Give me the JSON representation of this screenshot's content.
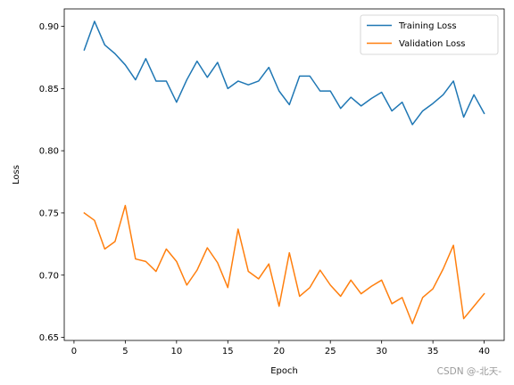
{
  "chart_data": {
    "type": "line",
    "title": "",
    "xlabel": "Epoch",
    "ylabel": "Loss",
    "xlim": [
      -0.95,
      41.95
    ],
    "ylim": [
      0.6475,
      0.914
    ],
    "x_ticks": [
      0,
      5,
      10,
      15,
      20,
      25,
      30,
      35,
      40
    ],
    "y_ticks": [
      0.65,
      0.7,
      0.75,
      0.8,
      0.85,
      0.9
    ],
    "grid": false,
    "legend_position": "top-right",
    "x": [
      1,
      2,
      3,
      4,
      5,
      6,
      7,
      8,
      9,
      10,
      11,
      12,
      13,
      14,
      15,
      16,
      17,
      18,
      19,
      20,
      21,
      22,
      23,
      24,
      25,
      26,
      27,
      28,
      29,
      30,
      31,
      32,
      33,
      34,
      35,
      36,
      37,
      38,
      39,
      40
    ],
    "series": [
      {
        "name": "Training Loss",
        "color": "#1f77b4",
        "values": [
          0.881,
          0.904,
          0.885,
          0.878,
          0.869,
          0.857,
          0.874,
          0.856,
          0.856,
          0.839,
          0.857,
          0.872,
          0.859,
          0.871,
          0.85,
          0.856,
          0.853,
          0.856,
          0.867,
          0.848,
          0.837,
          0.86,
          0.86,
          0.848,
          0.848,
          0.834,
          0.843,
          0.836,
          0.842,
          0.847,
          0.832,
          0.839,
          0.821,
          0.832,
          0.838,
          0.845,
          0.856,
          0.827,
          0.845,
          0.83
        ]
      },
      {
        "name": "Validation Loss",
        "color": "#ff7f0e",
        "values": [
          0.75,
          0.744,
          0.721,
          0.727,
          0.756,
          0.713,
          0.711,
          0.703,
          0.721,
          0.711,
          0.692,
          0.704,
          0.722,
          0.71,
          0.69,
          0.737,
          0.703,
          0.697,
          0.709,
          0.675,
          0.718,
          0.683,
          0.69,
          0.704,
          0.692,
          0.683,
          0.696,
          0.685,
          0.691,
          0.696,
          0.677,
          0.682,
          0.661,
          0.682,
          0.689,
          0.705,
          0.724,
          0.665,
          0.675,
          0.685
        ]
      }
    ]
  },
  "watermark": "CSDN @-北天-"
}
